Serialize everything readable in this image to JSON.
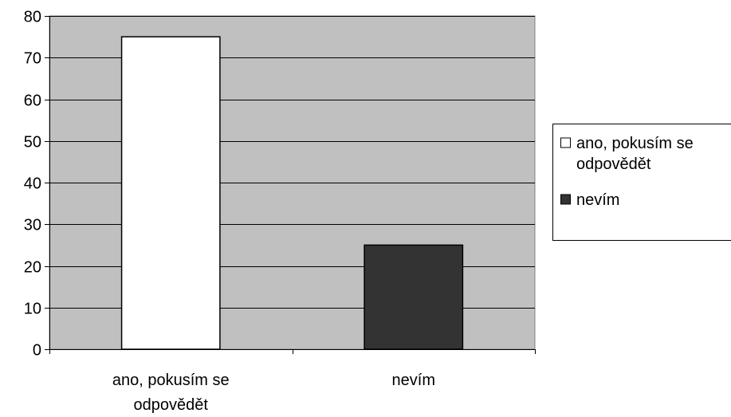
{
  "chart_data": {
    "type": "bar",
    "title": "",
    "xlabel": "",
    "ylabel": "",
    "ylim": [
      0,
      80
    ],
    "yticks": [
      0,
      10,
      20,
      30,
      40,
      50,
      60,
      70,
      80
    ],
    "grid": true,
    "legend_position": "right",
    "categories": [
      "ano, pokusím se odpovědět",
      "nevím"
    ],
    "category_label_lines": [
      [
        "ano, pokusím se",
        "odpovědět"
      ],
      [
        "nevím"
      ]
    ],
    "values": [
      75,
      25
    ],
    "colors": [
      "#ffffff",
      "#333333"
    ],
    "plot_background": "#c0c0c0",
    "legend": [
      {
        "lines": [
          "ano, pokusím se",
          "odpovědět"
        ],
        "color": "#ffffff"
      },
      {
        "lines": [
          "nevím"
        ],
        "color": "#333333"
      }
    ]
  }
}
